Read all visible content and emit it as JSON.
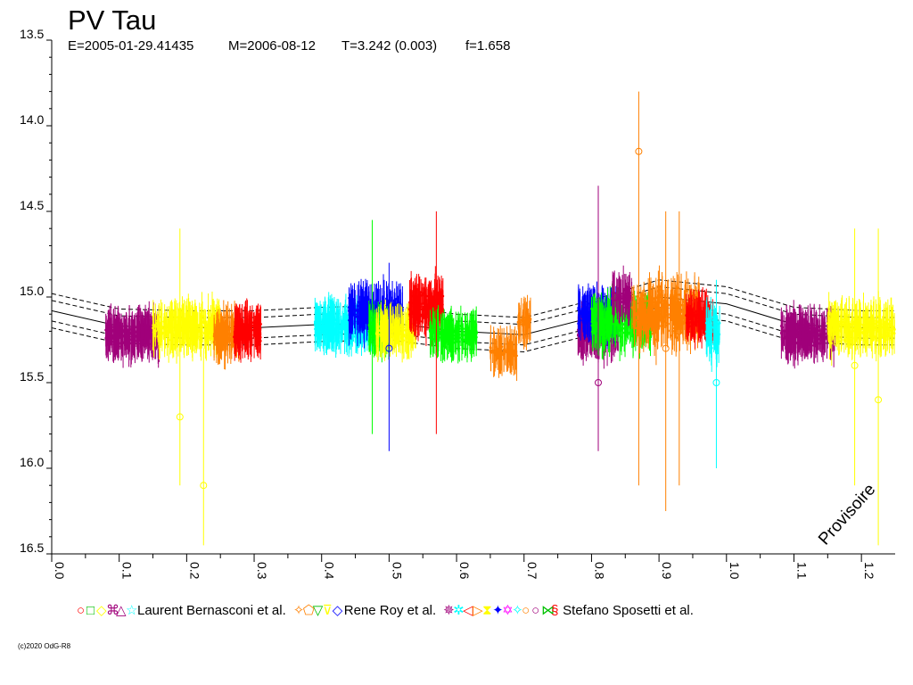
{
  "chart_data": {
    "type": "scatter",
    "title": "PV Tau",
    "ephemeris": {
      "E": "E=2005-01-29.41435",
      "M": "M=2006-08-12",
      "T": "T=3.242 (0.003)",
      "f": "f=1.658"
    },
    "xlim": [
      0.0,
      1.25
    ],
    "ylim": [
      13.5,
      16.5
    ],
    "y_inverted": true,
    "x_ticks": [
      "0.0",
      "0.1",
      "0.2",
      "0.3",
      "0.4",
      "0.5",
      "0.6",
      "0.7",
      "0.8",
      "0.9",
      "1.0",
      "1.1",
      "1.2"
    ],
    "y_ticks": [
      "13.5",
      "14.0",
      "14.5",
      "15.0",
      "15.5",
      "16.0",
      "16.5"
    ],
    "grid": false,
    "legend_position": "bottom",
    "legend": [
      {
        "name": "Laurent Bernasconi et al.",
        "symbols": "○□◇⌘△☆"
      },
      {
        "name": "Rene Roy et al.",
        "symbols": "✧⬠▽⊽◇"
      },
      {
        "name": "Stefano Sposetti et al.",
        "symbols": "✵✲◁▷⧗✦✡✧○○⋈§"
      }
    ],
    "model_curve": [
      {
        "x": 0.0,
        "y": 15.08
      },
      {
        "x": 0.1,
        "y": 15.17
      },
      {
        "x": 0.2,
        "y": 15.18
      },
      {
        "x": 0.3,
        "y": 15.18
      },
      {
        "x": 0.4,
        "y": 15.16
      },
      {
        "x": 0.5,
        "y": 15.15
      },
      {
        "x": 0.6,
        "y": 15.2
      },
      {
        "x": 0.7,
        "y": 15.22
      },
      {
        "x": 0.8,
        "y": 15.12
      },
      {
        "x": 0.9,
        "y": 15.0
      },
      {
        "x": 1.0,
        "y": 15.04
      },
      {
        "x": 1.1,
        "y": 15.16
      },
      {
        "x": 1.2,
        "y": 15.18
      },
      {
        "x": 1.25,
        "y": 15.18
      }
    ],
    "band_offsets": [
      0.06,
      0.1
    ],
    "series": [
      {
        "name": "cluster-1",
        "color": "#a0007a",
        "x": [
          0.08,
          0.16
        ],
        "y": 15.22,
        "n": 260,
        "spread": 0.08
      },
      {
        "name": "cluster-2",
        "color": "#ffff00",
        "x": [
          0.15,
          0.25
        ],
        "y": 15.18,
        "n": 260,
        "spread": 0.1
      },
      {
        "name": "cluster-3",
        "color": "#ff8000",
        "x": [
          0.24,
          0.28
        ],
        "y": 15.22,
        "n": 120,
        "spread": 0.09
      },
      {
        "name": "cluster-4",
        "color": "#ff0000",
        "x": [
          0.27,
          0.31
        ],
        "y": 15.2,
        "n": 140,
        "spread": 0.07
      },
      {
        "name": "cluster-5",
        "color": "#00ffff",
        "x": [
          0.39,
          0.48
        ],
        "y": 15.17,
        "n": 260,
        "spread": 0.08
      },
      {
        "name": "cluster-6",
        "color": "#0000ff",
        "x": [
          0.44,
          0.52
        ],
        "y": 15.08,
        "n": 200,
        "spread": 0.1
      },
      {
        "name": "cluster-7",
        "color": "#00ff00",
        "x": [
          0.47,
          0.5
        ],
        "y": 15.2,
        "n": 80,
        "spread": 0.08
      },
      {
        "name": "cluster-8",
        "color": "#ffff00",
        "x": [
          0.48,
          0.54
        ],
        "y": 15.2,
        "n": 160,
        "spread": 0.08
      },
      {
        "name": "cluster-9",
        "color": "#ff0000",
        "x": [
          0.53,
          0.58
        ],
        "y": 15.05,
        "n": 180,
        "spread": 0.12
      },
      {
        "name": "cluster-10",
        "color": "#00ff00",
        "x": [
          0.56,
          0.63
        ],
        "y": 15.22,
        "n": 180,
        "spread": 0.06
      },
      {
        "name": "cluster-11",
        "color": "#ff8000",
        "x": [
          0.65,
          0.69
        ],
        "y": 15.32,
        "n": 70,
        "spread": 0.04
      },
      {
        "name": "cluster-12",
        "color": "#ff8000",
        "x": [
          0.69,
          0.71
        ],
        "y": 15.15,
        "n": 40,
        "spread": 0.04
      },
      {
        "name": "cluster-13",
        "color": "#a0007a",
        "x": [
          0.78,
          0.84
        ],
        "y": 15.2,
        "n": 160,
        "spread": 0.1
      },
      {
        "name": "cluster-14",
        "color": "#0000ff",
        "x": [
          0.78,
          0.84
        ],
        "y": 15.1,
        "n": 180,
        "spread": 0.08
      },
      {
        "name": "cluster-15",
        "color": "#00ff00",
        "x": [
          0.8,
          0.89
        ],
        "y": 15.15,
        "n": 260,
        "spread": 0.12
      },
      {
        "name": "cluster-16",
        "color": "#a0007a",
        "x": [
          0.83,
          0.86
        ],
        "y": 15.0,
        "n": 60,
        "spread": 0.05
      },
      {
        "name": "cluster-17",
        "color": "#ff8000",
        "x": [
          0.86,
          0.96
        ],
        "y": 15.1,
        "n": 300,
        "spread": 0.18
      },
      {
        "name": "cluster-18",
        "color": "#ff0000",
        "x": [
          0.94,
          0.98
        ],
        "y": 15.12,
        "n": 90,
        "spread": 0.08
      },
      {
        "name": "cluster-19",
        "color": "#00ffff",
        "x": [
          0.97,
          0.99
        ],
        "y": 15.2,
        "n": 60,
        "spread": 0.15
      },
      {
        "name": "cluster-20",
        "color": "#a0007a",
        "x": [
          1.08,
          1.16
        ],
        "y": 15.22,
        "n": 260,
        "spread": 0.08
      },
      {
        "name": "cluster-21",
        "color": "#ffff00",
        "x": [
          1.15,
          1.25
        ],
        "y": 15.18,
        "n": 260,
        "spread": 0.1
      }
    ],
    "long_error_bars": [
      {
        "x": 0.19,
        "y": 15.7,
        "top": 14.6,
        "bottom": 16.1,
        "color": "#ffff00"
      },
      {
        "x": 0.225,
        "y": 16.1,
        "top": 15.3,
        "bottom": 16.45,
        "color": "#ffff00"
      },
      {
        "x": 0.475,
        "y": 15.2,
        "top": 14.55,
        "bottom": 15.8,
        "color": "#00ff00"
      },
      {
        "x": 0.5,
        "y": 15.3,
        "top": 14.8,
        "bottom": 15.9,
        "color": "#0000ff"
      },
      {
        "x": 0.57,
        "y": 15.0,
        "top": 14.5,
        "bottom": 15.8,
        "color": "#ff0000"
      },
      {
        "x": 0.81,
        "y": 15.5,
        "top": 14.35,
        "bottom": 15.9,
        "color": "#a0007a"
      },
      {
        "x": 0.87,
        "y": 14.15,
        "top": 13.8,
        "bottom": 16.1,
        "color": "#ff8000"
      },
      {
        "x": 0.91,
        "y": 15.3,
        "top": 14.5,
        "bottom": 16.25,
        "color": "#ff8000"
      },
      {
        "x": 0.93,
        "y": 15.2,
        "top": 14.5,
        "bottom": 16.1,
        "color": "#ff8000"
      },
      {
        "x": 0.985,
        "y": 15.5,
        "top": 14.9,
        "bottom": 16.0,
        "color": "#00ffff"
      },
      {
        "x": 1.19,
        "y": 15.4,
        "top": 14.6,
        "bottom": 16.1,
        "color": "#ffff00"
      },
      {
        "x": 1.225,
        "y": 15.6,
        "top": 14.6,
        "bottom": 16.45,
        "color": "#ffff00"
      }
    ]
  },
  "stamp": "Provisoire",
  "copyright": "(c)2020 OdG-R8"
}
